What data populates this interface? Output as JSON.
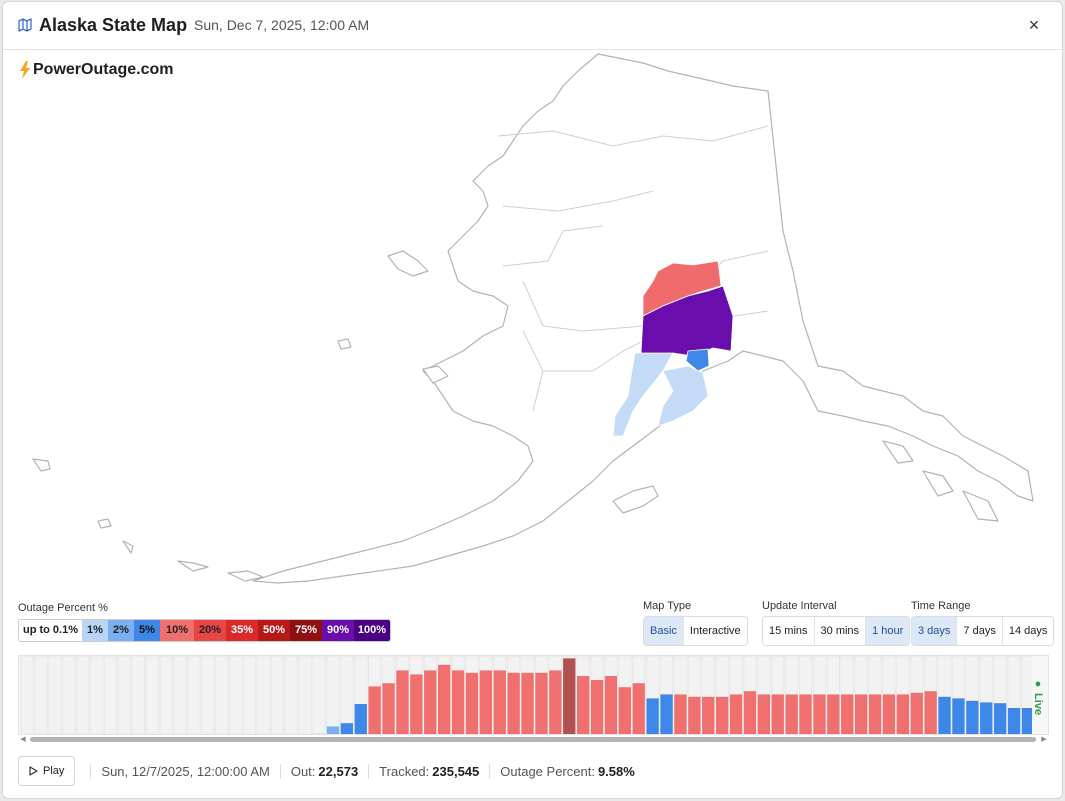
{
  "header": {
    "title": "Alaska State Map",
    "datetime": "Sun, Dec 7, 2025, 12:00 AM",
    "close_label": "×"
  },
  "brand": {
    "name": "PowerOutage.com",
    "icon": "lightning-icon"
  },
  "legend": {
    "title": "Outage Percent %",
    "items": [
      {
        "label": "up to 0.1%",
        "color": "#ffffff",
        "text": "#222222"
      },
      {
        "label": "1%",
        "color": "#b9d4f4",
        "text": "#222222"
      },
      {
        "label": "2%",
        "color": "#7aaff0",
        "text": "#222222"
      },
      {
        "label": "5%",
        "color": "#3d87e8",
        "text": "#111111"
      },
      {
        "label": "10%",
        "color": "#f07070",
        "text": "#222222"
      },
      {
        "label": "20%",
        "color": "#e84545",
        "text": "#222222"
      },
      {
        "label": "35%",
        "color": "#d92a2a",
        "text": "#ffffff"
      },
      {
        "label": "50%",
        "color": "#b71818",
        "text": "#ffffff"
      },
      {
        "label": "75%",
        "color": "#8f1010",
        "text": "#ffffff"
      },
      {
        "label": "90%",
        "color": "#6a0dad",
        "text": "#ffffff"
      },
      {
        "label": "100%",
        "color": "#4b0082",
        "text": "#ffffff"
      }
    ]
  },
  "controls": {
    "map_type": {
      "label": "Map Type",
      "options": [
        "Basic",
        "Interactive"
      ],
      "selected": "Basic"
    },
    "update_interval": {
      "label": "Update Interval",
      "options": [
        "15 mins",
        "30 mins",
        "1 hour"
      ],
      "selected": "1 hour"
    },
    "time_range": {
      "label": "Time Range",
      "options": [
        "3 days",
        "7 days",
        "14 days"
      ],
      "selected": "3 days"
    }
  },
  "timeline": {
    "live_label": "● Live",
    "bars": [
      0,
      0,
      0,
      0,
      0,
      0,
      0,
      0,
      0,
      0,
      0,
      0,
      0,
      0,
      0,
      0,
      0,
      0,
      0,
      1,
      2,
      3,
      12,
      16,
      40,
      62,
      66,
      82,
      77,
      82,
      89,
      82,
      79,
      82,
      82,
      79,
      79,
      79,
      82,
      97,
      75,
      70,
      75,
      61,
      66,
      47,
      52,
      52,
      49,
      49,
      49,
      52,
      56,
      52,
      52,
      52,
      52,
      52,
      52,
      52,
      52,
      52,
      52,
      52,
      54,
      56,
      49,
      47,
      44,
      42,
      41,
      35,
      35,
      38,
      38,
      35,
      42,
      47,
      47,
      30,
      38,
      42,
      44,
      41,
      35
    ],
    "levels": [
      "n",
      "n",
      "n",
      "n",
      "n",
      "n",
      "n",
      "n",
      "n",
      "n",
      "n",
      "n",
      "n",
      "n",
      "n",
      "n",
      "n",
      "n",
      "n",
      "n",
      "n",
      "l",
      "m",
      "b",
      "b",
      "r",
      "r",
      "r",
      "r",
      "r",
      "r",
      "r",
      "r",
      "r",
      "r",
      "r",
      "r",
      "r",
      "r",
      "d",
      "r",
      "r",
      "r",
      "r",
      "r",
      "b",
      "b",
      "r",
      "r",
      "r",
      "r",
      "r",
      "r",
      "r",
      "r",
      "r",
      "r",
      "r",
      "r",
      "r",
      "r",
      "r",
      "r",
      "r",
      "r",
      "r",
      "b",
      "b",
      "b",
      "b",
      "b",
      "b",
      "b",
      "b",
      "b",
      "b",
      "b",
      "b",
      "b",
      "b",
      "b",
      "b",
      "b",
      "b",
      "b"
    ]
  },
  "footer": {
    "play_label": "Play",
    "datetime": "Sun, 12/7/2025, 12:00:00 AM",
    "out_label": "Out:",
    "out_value": "22,573",
    "tracked_label": "Tracked:",
    "tracked_value": "235,545",
    "percent_label": "Outage Percent:",
    "percent_value": "9.58%"
  }
}
